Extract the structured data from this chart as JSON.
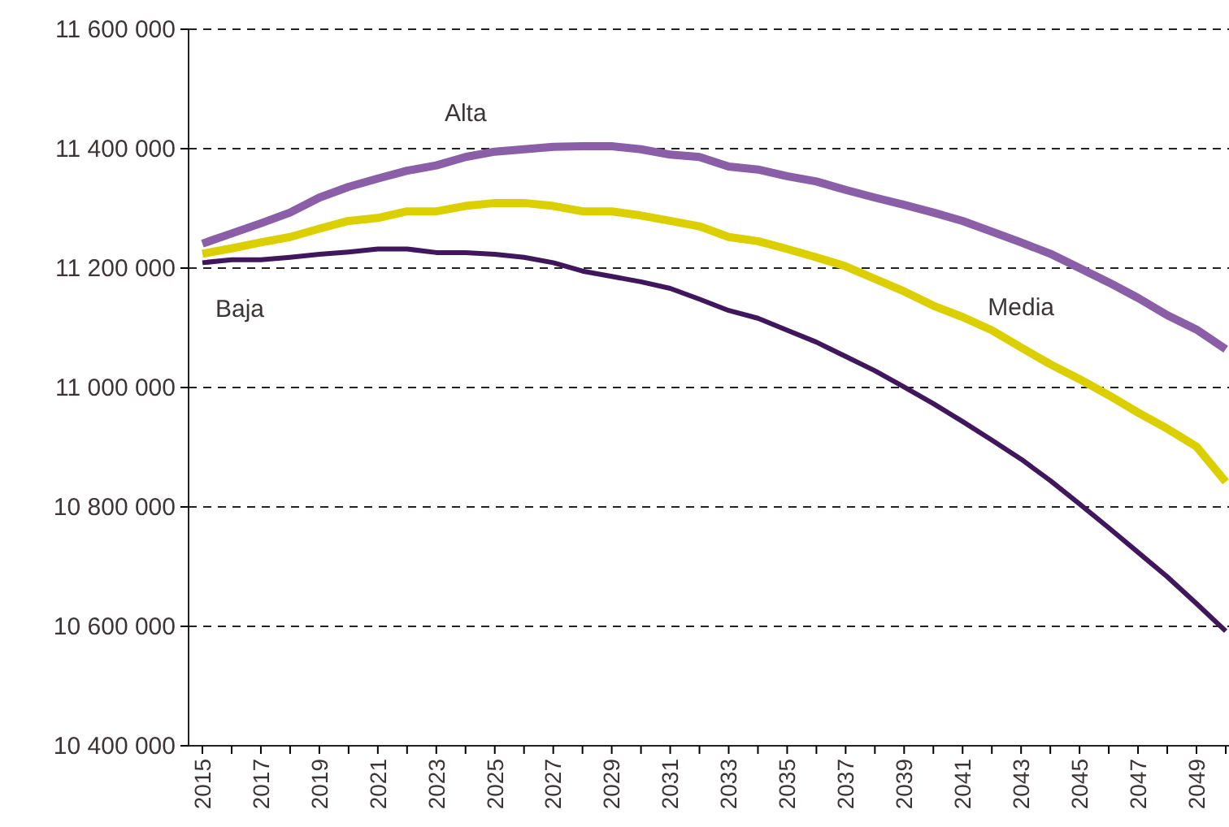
{
  "chart_data": {
    "type": "line",
    "categories": [
      "2015",
      null,
      "2017",
      null,
      "2019",
      null,
      "2021",
      null,
      "2023",
      null,
      "2025",
      null,
      "2027",
      null,
      "2029",
      null,
      "2031",
      null,
      "2033",
      null,
      "2035",
      null,
      "2037",
      null,
      "2039",
      null,
      "2041",
      null,
      "2043",
      null,
      "2045",
      null,
      "2047",
      null,
      "2049",
      null
    ],
    "series": [
      {
        "name": "Alta",
        "color": "#8b5ea8",
        "values": [
          11241000,
          11258000,
          11275000,
          11293000,
          11318000,
          11336000,
          11350000,
          11363000,
          11372000,
          11386000,
          11395000,
          11399000,
          11403000,
          11404000,
          11404000,
          11399000,
          11390000,
          11386000,
          11370000,
          11365000,
          11354000,
          11345000,
          11331000,
          11318000,
          11306000,
          11293000,
          11279000,
          11261000,
          11243000,
          11224000,
          11200000,
          11176000,
          11150000,
          11121000,
          11097000,
          11064000
        ]
      },
      {
        "name": "Media",
        "color": "#dccf00",
        "values": [
          11224000,
          11233000,
          11243000,
          11252000,
          11266000,
          11279000,
          11284000,
          11295000,
          11295000,
          11304000,
          11309000,
          11309000,
          11304000,
          11295000,
          11295000,
          11288000,
          11279000,
          11270000,
          11252000,
          11245000,
          11232000,
          11218000,
          11203000,
          11182000,
          11161000,
          11137000,
          11118000,
          11096000,
          11067000,
          11039000,
          11014000,
          10987000,
          10958000,
          10931000,
          10901000,
          10842000
        ]
      },
      {
        "name": "Baja",
        "color": "#40175c",
        "values": [
          11209000,
          11214000,
          11214000,
          11218000,
          11223000,
          11227000,
          11232000,
          11232000,
          11226000,
          11226000,
          11223000,
          11218000,
          11209000,
          11195000,
          11186000,
          11177000,
          11166000,
          11148000,
          11129000,
          11116000,
          11096000,
          11076000,
          11052000,
          11028000,
          11001000,
          10973000,
          10943000,
          10912000,
          10880000,
          10844000,
          10805000,
          10765000,
          10724000,
          10683000,
          10638000,
          10592000
        ]
      }
    ],
    "ylim": [
      10400000,
      11600000
    ],
    "yticks": [
      {
        "value": 10400000,
        "label": "10 400 000"
      },
      {
        "value": 10600000,
        "label": "10 600 000"
      },
      {
        "value": 10800000,
        "label": "10 800 000"
      },
      {
        "value": 11000000,
        "label": "11 000 000"
      },
      {
        "value": 11200000,
        "label": "11 200 000"
      },
      {
        "value": 11400000,
        "label": "11 400 000"
      },
      {
        "value": 11600000,
        "label": "11 600 000"
      }
    ],
    "grid": "y",
    "legend": false,
    "marker": "none",
    "line_style": "solid"
  }
}
